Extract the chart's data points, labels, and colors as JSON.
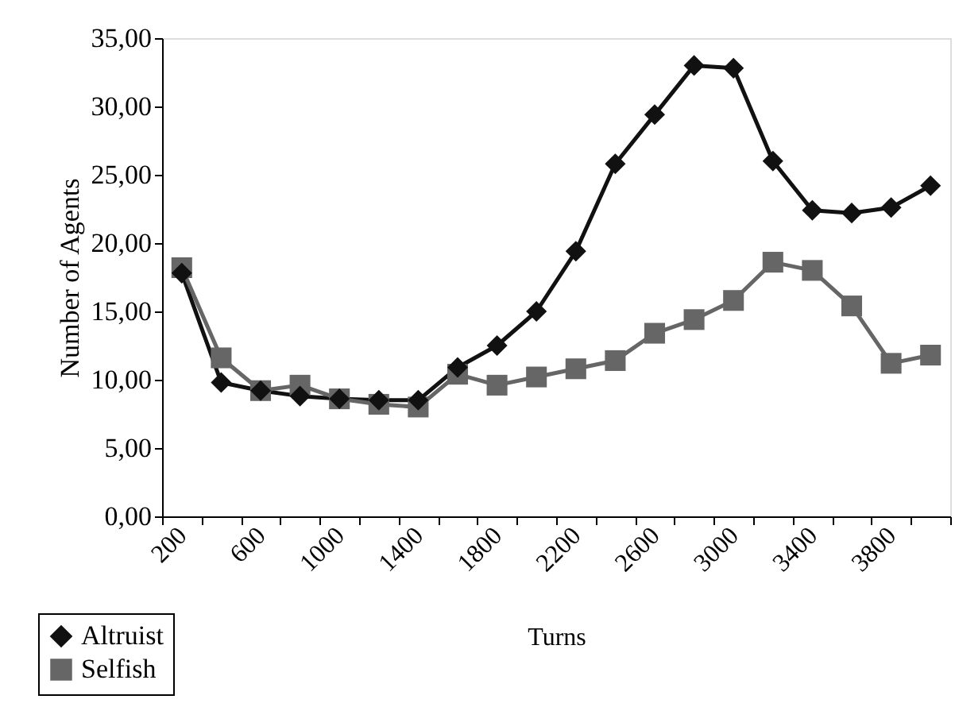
{
  "chart_data": {
    "type": "line",
    "xlabel": "Turns",
    "ylabel": "Number of Agents",
    "categories": [
      "200",
      null,
      "600",
      null,
      "1000",
      null,
      "1400",
      null,
      "1800",
      null,
      "2200",
      null,
      "2600",
      null,
      "3000",
      null,
      "3400",
      null,
      "3800",
      null
    ],
    "series": [
      {
        "name": "Altruist",
        "color": "#111111",
        "marker": "diamond",
        "values": [
          17.8,
          9.8,
          9.2,
          8.8,
          8.6,
          8.5,
          8.5,
          10.9,
          12.5,
          15.0,
          19.4,
          25.8,
          29.4,
          33.0,
          32.8,
          26.0,
          22.4,
          22.2,
          22.6,
          24.2
        ]
      },
      {
        "name": "Selfish",
        "color": "#666666",
        "marker": "square",
        "values": [
          18.2,
          11.6,
          9.2,
          9.6,
          8.6,
          8.2,
          8.0,
          10.4,
          9.6,
          10.2,
          10.8,
          11.4,
          13.4,
          14.4,
          15.8,
          18.6,
          18.0,
          15.4,
          11.2,
          11.8
        ]
      }
    ],
    "ylim": [
      0,
      35
    ],
    "yticks": [
      {
        "value": 0,
        "label": "0,00"
      },
      {
        "value": 5,
        "label": "5,00"
      },
      {
        "value": 10,
        "label": "10,00"
      },
      {
        "value": 15,
        "label": "15,00"
      },
      {
        "value": 20,
        "label": "20,00"
      },
      {
        "value": 25,
        "label": "25,00"
      },
      {
        "value": 30,
        "label": "30,00"
      },
      {
        "value": 35,
        "label": "35,00"
      }
    ],
    "grid": false,
    "legend": "bottom left",
    "line_style": "solid"
  }
}
